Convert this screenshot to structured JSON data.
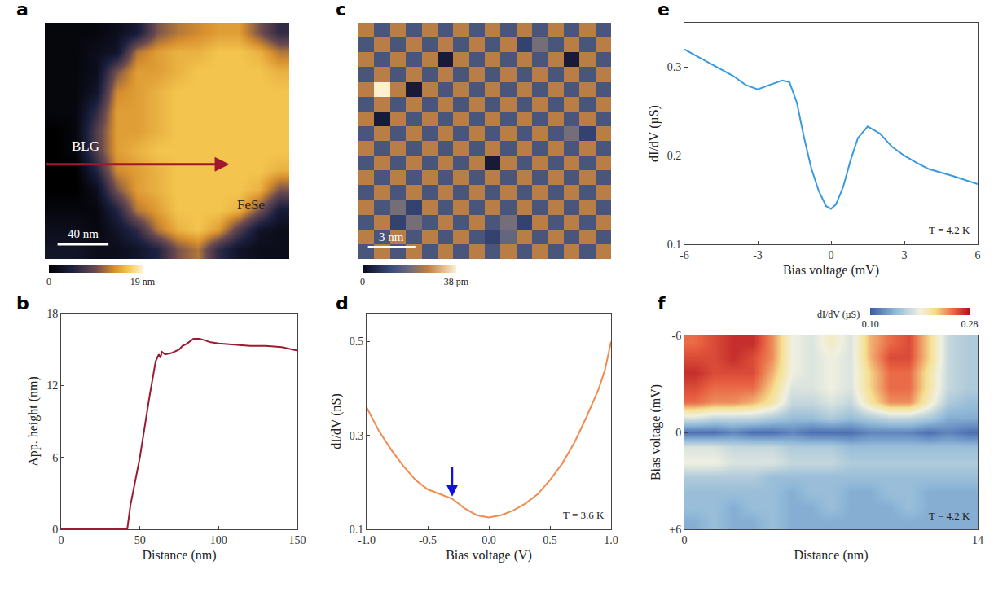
{
  "chart_data": [
    {
      "panel": "a",
      "type": "heatmap",
      "tick_labels": false,
      "xlim": [
        0,
        192
      ],
      "ylim": [
        0,
        192
      ],
      "z": [
        [
          1,
          1,
          1,
          2,
          4,
          10,
          12,
          13,
          14,
          14,
          10,
          6
        ],
        [
          1,
          1,
          2,
          3,
          12,
          14,
          15,
          15,
          16,
          16,
          15,
          12
        ],
        [
          1,
          1,
          2,
          10,
          14,
          14,
          15,
          16,
          16,
          16,
          16,
          15
        ],
        [
          1,
          1,
          3,
          13,
          14,
          15,
          16,
          16,
          16,
          16,
          16,
          16
        ],
        [
          1,
          1,
          6,
          14,
          14,
          15,
          16,
          16,
          16,
          16,
          16,
          16
        ],
        [
          0,
          1,
          8,
          14,
          14,
          15,
          16,
          16,
          16,
          16,
          16,
          16
        ],
        [
          0,
          1,
          8,
          14,
          15,
          16,
          16,
          16,
          16,
          16,
          16,
          16
        ],
        [
          0,
          0,
          5,
          13,
          14,
          15,
          16,
          16,
          16,
          16,
          16,
          15
        ],
        [
          0,
          0,
          2,
          10,
          14,
          15,
          16,
          16,
          16,
          16,
          15,
          10
        ],
        [
          1,
          1,
          1,
          5,
          12,
          14,
          16,
          16,
          16,
          15,
          10,
          4
        ],
        [
          2,
          2,
          1,
          3,
          6,
          12,
          15,
          16,
          14,
          8,
          3,
          2
        ],
        [
          3,
          3,
          2,
          2,
          3,
          5,
          10,
          12,
          6,
          3,
          2,
          2
        ]
      ],
      "colorbar": {
        "range": [
          0,
          19
        ],
        "ticks": [
          0,
          {
            "value": 19,
            "label": "19 nm"
          }
        ]
      },
      "annotations": [
        {
          "text": "BLG",
          "x": 20,
          "y": 100,
          "color": "#ffffff"
        },
        {
          "text": "FeSe",
          "x": 150,
          "y": 148,
          "color": "#222222"
        }
      ],
      "arrow": {
        "x": [
          0,
          145
        ],
        "y": 115,
        "color": "#a01830"
      },
      "scale_bar": {
        "length": 40,
        "label": "40 nm",
        "x": 10,
        "y": 180
      }
    },
    {
      "panel": "b",
      "type": "line",
      "color": "#9b1b30",
      "xlabel": "Distance (nm)",
      "ylabel": "App. height (nm)",
      "xlim": [
        0,
        150
      ],
      "ylim": [
        0,
        18
      ],
      "xticks": [
        0,
        50,
        100,
        150
      ],
      "yticks": [
        0,
        6,
        12,
        18
      ],
      "x": [
        0,
        42,
        44,
        50,
        56,
        60,
        62,
        63,
        64,
        66,
        70,
        75,
        77,
        80,
        84,
        88,
        95,
        100,
        110,
        120,
        130,
        140,
        150
      ],
      "values": [
        0,
        0,
        2,
        6,
        11,
        14,
        14.6,
        14.3,
        14.8,
        14.6,
        14.7,
        15.0,
        15.3,
        15.5,
        15.9,
        15.9,
        15.6,
        15.5,
        15.4,
        15.3,
        15.3,
        15.2,
        14.9
      ]
    },
    {
      "panel": "c",
      "type": "heatmap",
      "tick_labels": false,
      "xlim": [
        0,
        16
      ],
      "ylim": [
        0,
        16
      ],
      "z": [
        [
          26,
          14,
          26,
          14,
          26,
          14,
          26,
          14,
          26,
          14,
          26,
          14,
          26,
          14,
          26,
          14
        ],
        [
          14,
          26,
          14,
          26,
          14,
          26,
          14,
          26,
          14,
          26,
          10,
          20,
          14,
          26,
          14,
          26
        ],
        [
          26,
          14,
          26,
          14,
          26,
          3,
          26,
          14,
          26,
          14,
          26,
          14,
          26,
          3,
          26,
          14
        ],
        [
          14,
          26,
          14,
          26,
          14,
          26,
          14,
          26,
          14,
          26,
          14,
          26,
          14,
          26,
          14,
          26
        ],
        [
          26,
          38,
          26,
          3,
          26,
          14,
          26,
          14,
          26,
          14,
          26,
          14,
          26,
          14,
          26,
          14
        ],
        [
          14,
          26,
          14,
          26,
          14,
          26,
          14,
          26,
          14,
          26,
          14,
          26,
          14,
          26,
          14,
          26
        ],
        [
          26,
          3,
          26,
          14,
          26,
          14,
          26,
          14,
          26,
          14,
          26,
          14,
          26,
          14,
          26,
          14
        ],
        [
          14,
          26,
          14,
          26,
          14,
          26,
          14,
          26,
          14,
          26,
          14,
          26,
          14,
          20,
          10,
          26
        ],
        [
          26,
          14,
          26,
          14,
          26,
          14,
          26,
          14,
          26,
          14,
          26,
          14,
          26,
          14,
          26,
          14
        ],
        [
          14,
          26,
          14,
          26,
          14,
          26,
          14,
          26,
          3,
          26,
          14,
          26,
          14,
          26,
          14,
          26
        ],
        [
          26,
          14,
          26,
          14,
          26,
          14,
          26,
          14,
          26,
          14,
          26,
          14,
          26,
          14,
          26,
          14
        ],
        [
          14,
          26,
          14,
          26,
          14,
          26,
          14,
          26,
          14,
          26,
          14,
          26,
          14,
          26,
          14,
          26
        ],
        [
          26,
          14,
          20,
          10,
          26,
          14,
          26,
          14,
          26,
          14,
          26,
          14,
          26,
          14,
          26,
          14
        ],
        [
          14,
          26,
          10,
          20,
          14,
          26,
          14,
          26,
          14,
          20,
          10,
          26,
          14,
          26,
          14,
          26
        ],
        [
          26,
          14,
          26,
          14,
          26,
          14,
          26,
          14,
          10,
          18,
          26,
          14,
          26,
          14,
          26,
          14
        ],
        [
          14,
          26,
          14,
          26,
          14,
          26,
          14,
          26,
          14,
          26,
          14,
          26,
          14,
          26,
          14,
          26
        ]
      ],
      "colorbar": {
        "range": [
          0,
          38
        ],
        "ticks": [
          0,
          {
            "value": 38,
            "label": "38 pm"
          }
        ]
      },
      "scale_bar": {
        "length": 3,
        "label": "3 nm",
        "x": 0.6,
        "y": 15.2
      }
    },
    {
      "panel": "d",
      "type": "line",
      "color": "#f08c50",
      "xlabel": "Bias voltage (V)",
      "ylabel": "dI/dV (nS)",
      "xlim": [
        -1,
        1
      ],
      "ylim": [
        0.1,
        0.56
      ],
      "xticks": [
        {
          "value": -1,
          "label": "-1.0"
        },
        -0.5,
        {
          "value": 0,
          "label": "0.0"
        },
        0.5,
        {
          "value": 1,
          "label": "1.0"
        }
      ],
      "yticks": [
        0.1,
        0.3,
        0.5
      ],
      "x": [
        -1,
        -0.9,
        -0.8,
        -0.7,
        -0.6,
        -0.5,
        -0.4,
        -0.3,
        -0.2,
        -0.1,
        0,
        0.1,
        0.2,
        0.3,
        0.4,
        0.5,
        0.6,
        0.7,
        0.8,
        0.9,
        0.95,
        1
      ],
      "values": [
        0.36,
        0.31,
        0.27,
        0.235,
        0.205,
        0.185,
        0.175,
        0.165,
        0.145,
        0.13,
        0.125,
        0.13,
        0.14,
        0.155,
        0.175,
        0.205,
        0.24,
        0.285,
        0.34,
        0.4,
        0.44,
        0.5
      ],
      "arrow": {
        "x": -0.3,
        "y": 0.17,
        "color": "#1010e0"
      },
      "annotations": [
        {
          "text": "T = 3.6 K"
        }
      ]
    },
    {
      "panel": "e",
      "type": "line",
      "color": "#3a9ae0",
      "xlabel": "Bias voltage (mV)",
      "ylabel": "dI/dV (µS)",
      "xlim": [
        -6,
        6
      ],
      "ylim": [
        0.1,
        0.35
      ],
      "xticks": [
        -6,
        -3,
        0,
        3,
        6
      ],
      "yticks": [
        0.1,
        0.2,
        0.3
      ],
      "x": [
        -6,
        -5,
        -4,
        -3.5,
        -3,
        -2.5,
        -2,
        -1.7,
        -1.4,
        -1.1,
        -0.8,
        -0.5,
        -0.2,
        0,
        0.2,
        0.5,
        0.8,
        1.1,
        1.5,
        2,
        2.5,
        3,
        3.5,
        4,
        5,
        6
      ],
      "values": [
        0.32,
        0.305,
        0.29,
        0.28,
        0.275,
        0.28,
        0.285,
        0.283,
        0.26,
        0.22,
        0.185,
        0.16,
        0.143,
        0.14,
        0.145,
        0.165,
        0.195,
        0.22,
        0.233,
        0.225,
        0.21,
        0.2,
        0.192,
        0.185,
        0.177,
        0.168
      ],
      "annotations": [
        {
          "text": "T = 4.2 K"
        }
      ]
    },
    {
      "panel": "f",
      "type": "heatmap",
      "xlabel": "Distance (nm)",
      "ylabel": "Bias voltage (mV)",
      "xlim": [
        0,
        14
      ],
      "ylim": [
        -6,
        6
      ],
      "xticks": [
        0,
        14
      ],
      "yticks": [
        -6,
        0,
        {
          "value": 6,
          "label": "+6"
        }
      ],
      "z": [
        [
          0.25,
          0.26,
          0.27,
          0.27,
          0.24,
          0.19,
          0.18,
          0.2,
          0.18,
          0.23,
          0.25,
          0.26,
          0.22,
          0.17,
          0.16
        ],
        [
          0.26,
          0.26,
          0.27,
          0.26,
          0.24,
          0.19,
          0.18,
          0.19,
          0.18,
          0.23,
          0.26,
          0.26,
          0.22,
          0.17,
          0.16
        ],
        [
          0.27,
          0.26,
          0.26,
          0.26,
          0.23,
          0.19,
          0.18,
          0.19,
          0.18,
          0.22,
          0.25,
          0.25,
          0.21,
          0.17,
          0.16
        ],
        [
          0.26,
          0.25,
          0.25,
          0.25,
          0.22,
          0.18,
          0.18,
          0.19,
          0.18,
          0.22,
          0.25,
          0.25,
          0.21,
          0.17,
          0.16
        ],
        [
          0.25,
          0.24,
          0.24,
          0.23,
          0.21,
          0.17,
          0.17,
          0.18,
          0.17,
          0.21,
          0.24,
          0.24,
          0.2,
          0.16,
          0.15
        ],
        [
          0.18,
          0.17,
          0.17,
          0.17,
          0.16,
          0.15,
          0.15,
          0.16,
          0.15,
          0.16,
          0.17,
          0.17,
          0.16,
          0.14,
          0.14
        ],
        [
          0.11,
          0.11,
          0.12,
          0.11,
          0.11,
          0.12,
          0.11,
          0.11,
          0.11,
          0.12,
          0.12,
          0.12,
          0.11,
          0.12,
          0.11
        ],
        [
          0.18,
          0.18,
          0.17,
          0.17,
          0.17,
          0.16,
          0.16,
          0.16,
          0.15,
          0.15,
          0.15,
          0.15,
          0.15,
          0.15,
          0.15
        ],
        [
          0.19,
          0.19,
          0.18,
          0.18,
          0.18,
          0.17,
          0.17,
          0.17,
          0.16,
          0.16,
          0.16,
          0.16,
          0.16,
          0.16,
          0.16
        ],
        [
          0.16,
          0.16,
          0.16,
          0.16,
          0.15,
          0.15,
          0.15,
          0.15,
          0.15,
          0.15,
          0.15,
          0.15,
          0.15,
          0.15,
          0.15
        ],
        [
          0.15,
          0.15,
          0.15,
          0.15,
          0.15,
          0.14,
          0.15,
          0.15,
          0.14,
          0.14,
          0.15,
          0.15,
          0.14,
          0.14,
          0.14
        ],
        [
          0.15,
          0.15,
          0.14,
          0.15,
          0.15,
          0.14,
          0.14,
          0.15,
          0.14,
          0.14,
          0.14,
          0.15,
          0.14,
          0.14,
          0.14
        ],
        [
          0.14,
          0.15,
          0.14,
          0.14,
          0.15,
          0.14,
          0.14,
          0.14,
          0.14,
          0.14,
          0.14,
          0.14,
          0.14,
          0.14,
          0.14
        ]
      ],
      "colorbar": {
        "title": "dI/dV (µS)",
        "range": [
          0.1,
          0.28
        ],
        "ticks": [
          {
            "value": 0.1,
            "label": "0.10"
          },
          0.28
        ]
      },
      "annotations": [
        {
          "text": "T = 4.2 K"
        }
      ]
    }
  ]
}
